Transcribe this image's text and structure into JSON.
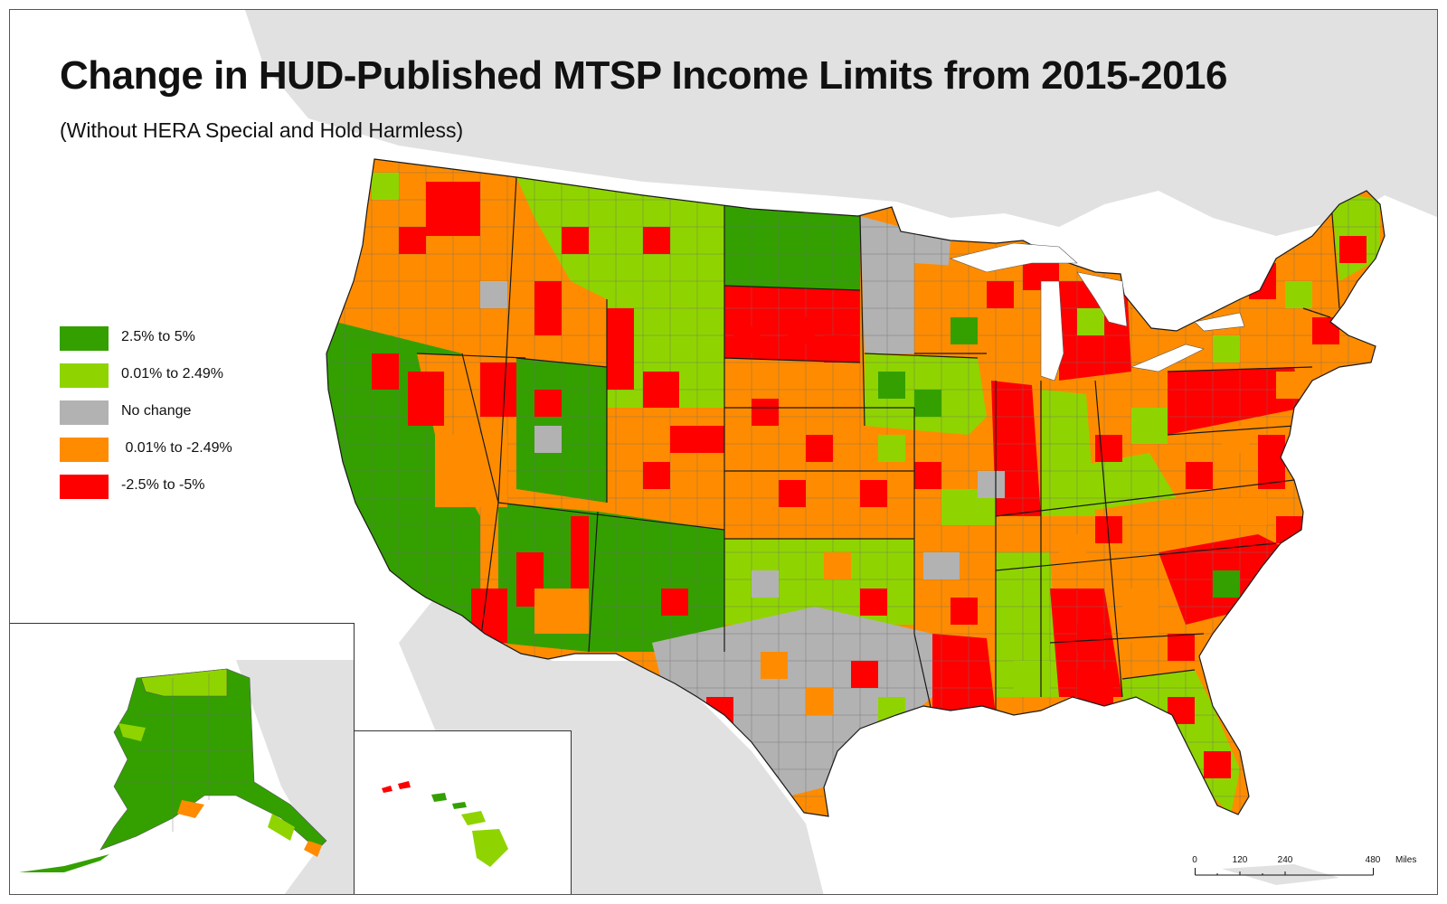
{
  "title": "Change in HUD-Published MTSP Income Limits from 2015-2016",
  "subtitle": "(Without HERA Special and Hold Harmless)",
  "legend": [
    {
      "label": "2.5% to 5%",
      "color": "#33a000"
    },
    {
      "label": "0.01% to 2.49%",
      "color": "#8fd400"
    },
    {
      "label": "No change",
      "color": "#b2b2b2"
    },
    {
      "label": " 0.01% to -2.49%",
      "color": "#ff8c00"
    },
    {
      "label": "-2.5% to -5%",
      "color": "#ff0000"
    }
  ],
  "colors": {
    "land_background": "#e1e1e1",
    "water": "#ffffff",
    "state_border": "#1a1a1a",
    "county_border": "#6f6f6f"
  },
  "scale_bar": {
    "ticks": [
      "0",
      "120",
      "240",
      "480"
    ],
    "unit": "Miles"
  },
  "insets": [
    "Alaska",
    "Hawaii"
  ]
}
